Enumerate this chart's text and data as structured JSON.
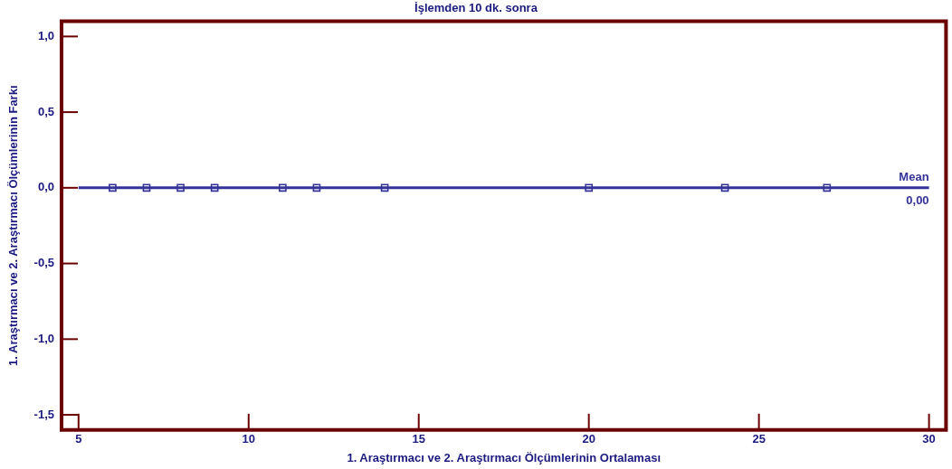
{
  "chart_data": {
    "type": "scatter",
    "title": "İşlemden 10 dk. sonra",
    "xlabel": "1. Araştırmacı ve 2. Araştırmacı Ölçümlerinin Ortalaması",
    "ylabel": "1. Araştırmacı ve 2. Araştırmacı Ölçümlerinin Farkı",
    "x": [
      6,
      7,
      8,
      9,
      11,
      12,
      14,
      20,
      24,
      27
    ],
    "series": [
      {
        "color": "#333399",
        "values": [
          0,
          0,
          0,
          0,
          0,
          0,
          0,
          0,
          0,
          0
        ]
      }
    ],
    "marker": "square",
    "grid": false,
    "legend": false,
    "xlim": [
      4.5,
      30.5
    ],
    "xticks": [
      5,
      10,
      15,
      20,
      25,
      30
    ],
    "ylim": [
      -1.6,
      1.1
    ],
    "yticks": [
      {
        "value": -1.5,
        "label": "-1,5"
      },
      {
        "value": -1,
        "label": "-1,0"
      },
      {
        "value": -0.5,
        "label": "-0,5"
      },
      {
        "value": 0,
        "label": "0,0"
      },
      {
        "value": 0.5,
        "label": "0,5"
      },
      {
        "value": 1,
        "label": "1,0"
      }
    ],
    "ref_lines": [
      {
        "axis": "y",
        "value": 0,
        "label": "Mean",
        "color": "#333399"
      }
    ],
    "annotations": [
      "0,00"
    ]
  }
}
